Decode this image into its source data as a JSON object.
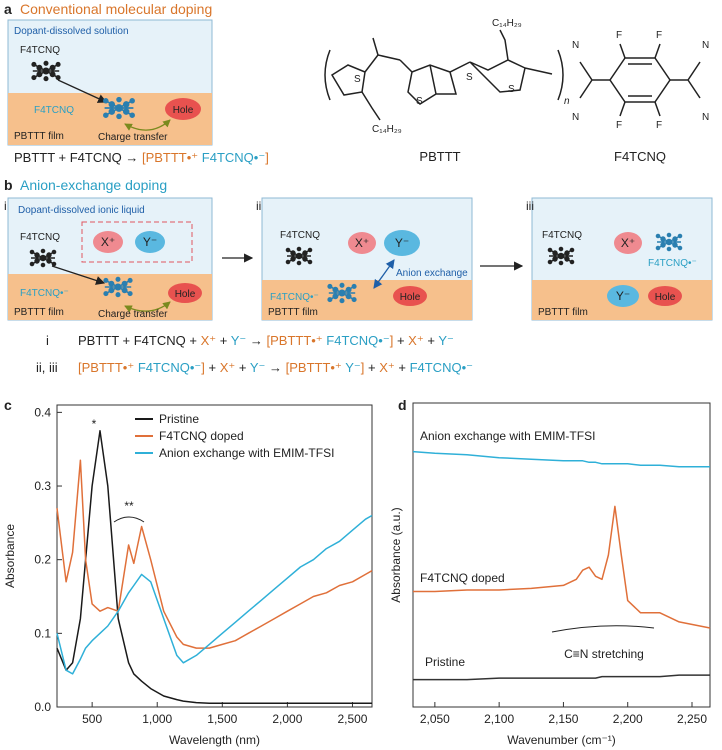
{
  "panel_a": {
    "letter": "a",
    "title": "Conventional molecular doping",
    "box_title": "Dopant-dissolved solution",
    "dopant": "F4TCNQ",
    "film": "PBTTT film",
    "hole": "Hole",
    "transfer": "Charge transfer",
    "equation": [
      {
        "text": "PBTTT + F4TCNQ → ",
        "color": "#222222"
      },
      {
        "text": "[PBTTT•⁺ ",
        "color": "#d9762b"
      },
      {
        "text": "F4TCNQ•⁻",
        "color": "#2a9fc4"
      },
      {
        "text": "]",
        "color": "#d9762b"
      }
    ],
    "structures": {
      "pbttt": "PBTTT",
      "f4tcnq": "F4TCNQ",
      "alkyl": "C₁₄H₂₉",
      "repeat": "n",
      "S": "S",
      "F": "F",
      "N": "N"
    }
  },
  "panel_b": {
    "letter": "b",
    "title": "Anion-exchange doping",
    "box_title": "Dopant-dissolved ionic liquid",
    "steps": [
      "i",
      "ii",
      "iii"
    ],
    "labels": {
      "dopant": "F4TCNQ",
      "cation": "X⁺",
      "anion": "Y⁻",
      "radical_anion": "F4TCNQ•⁻",
      "hole": "Hole",
      "film": "PBTTT film",
      "transfer": "Charge transfer",
      "exchange": "Anion exchange"
    },
    "equations": [
      {
        "label": "i",
        "segments": [
          {
            "text": "PBTTT + F4TCNQ + ",
            "color": "#222222"
          },
          {
            "text": "X⁺",
            "color": "#d9762b"
          },
          {
            "text": " + ",
            "color": "#222222"
          },
          {
            "text": "Y⁻",
            "color": "#2a9fc4"
          },
          {
            "text": " → ",
            "color": "#222222"
          },
          {
            "text": "[PBTTT•⁺ ",
            "color": "#d9762b"
          },
          {
            "text": "F4TCNQ•⁻",
            "color": "#2a9fc4"
          },
          {
            "text": "]",
            "color": "#d9762b"
          },
          {
            "text": " + ",
            "color": "#222222"
          },
          {
            "text": "X⁺",
            "color": "#d9762b"
          },
          {
            "text": " + ",
            "color": "#222222"
          },
          {
            "text": "Y⁻",
            "color": "#2a9fc4"
          }
        ]
      },
      {
        "label": "ii, iii",
        "segments": [
          {
            "text": "[PBTTT•⁺ ",
            "color": "#d9762b"
          },
          {
            "text": "F4TCNQ•⁻",
            "color": "#2a9fc4"
          },
          {
            "text": "]",
            "color": "#d9762b"
          },
          {
            "text": " + ",
            "color": "#222222"
          },
          {
            "text": "X⁺",
            "color": "#d9762b"
          },
          {
            "text": " + ",
            "color": "#222222"
          },
          {
            "text": "Y⁻",
            "color": "#2a9fc4"
          },
          {
            "text": " → ",
            "color": "#222222"
          },
          {
            "text": "[PBTTT•⁺ ",
            "color": "#d9762b"
          },
          {
            "text": "Y⁻",
            "color": "#2a9fc4"
          },
          {
            "text": "]",
            "color": "#d9762b"
          },
          {
            "text": " + ",
            "color": "#222222"
          },
          {
            "text": "X⁺",
            "color": "#d9762b"
          },
          {
            "text": " + ",
            "color": "#222222"
          },
          {
            "text": "F4TCNQ•⁻",
            "color": "#2a9fc4"
          }
        ]
      }
    ]
  },
  "chart_data": [
    {
      "type": "line",
      "letter": "c",
      "xlabel": "Wavelength (nm)",
      "ylabel": "Absorbance",
      "xlim": [
        230,
        2650
      ],
      "ylim": [
        0,
        0.41
      ],
      "xticks": [
        500,
        {
          "value": 1000,
          "label": "1,000"
        },
        {
          "value": 1500,
          "label": "1,500"
        },
        {
          "value": 2000,
          "label": "2,000"
        },
        {
          "value": 2500,
          "label": "2,500"
        }
      ],
      "yticks": [
        {
          "value": 0,
          "label": "0.0"
        },
        0.1,
        0.2,
        0.3,
        0.4
      ],
      "legend": "top-right",
      "annotations": [
        "*",
        "**"
      ],
      "x": [
        230,
        300,
        350,
        410,
        450,
        500,
        560,
        620,
        700,
        780,
        820,
        880,
        950,
        1050,
        1150,
        1200,
        1300,
        1400,
        1500,
        1600,
        1700,
        1800,
        1900,
        2000,
        2100,
        2200,
        2300,
        2400,
        2500,
        2600,
        2650
      ],
      "series": [
        {
          "name": "Pristine",
          "color": "#1a1a1a",
          "values": [
            0.08,
            0.05,
            0.06,
            0.12,
            0.2,
            0.3,
            0.375,
            0.3,
            0.12,
            0.06,
            0.045,
            0.035,
            0.025,
            0.015,
            0.01,
            0.008,
            0.006,
            0.005,
            0.005,
            0.005,
            0.005,
            0.005,
            0.005,
            0.005,
            0.005,
            0.005,
            0.005,
            0.005,
            0.005,
            0.005,
            0.005
          ]
        },
        {
          "name": "F4TCNQ doped",
          "color": "#e0703a",
          "values": [
            0.27,
            0.17,
            0.21,
            0.335,
            0.2,
            0.14,
            0.13,
            0.135,
            0.13,
            0.22,
            0.195,
            0.245,
            0.2,
            0.13,
            0.095,
            0.085,
            0.08,
            0.08,
            0.085,
            0.09,
            0.1,
            0.11,
            0.12,
            0.13,
            0.14,
            0.15,
            0.155,
            0.165,
            0.17,
            0.18,
            0.185
          ]
        },
        {
          "name": "Anion exchange with EMIM-TFSI",
          "color": "#2fb0d8",
          "values": [
            0.1,
            0.05,
            0.045,
            0.065,
            0.08,
            0.09,
            0.1,
            0.11,
            0.13,
            0.155,
            0.165,
            0.18,
            0.17,
            0.12,
            0.07,
            0.06,
            0.07,
            0.085,
            0.1,
            0.115,
            0.13,
            0.145,
            0.16,
            0.175,
            0.19,
            0.2,
            0.215,
            0.225,
            0.24,
            0.255,
            0.26
          ]
        }
      ]
    },
    {
      "type": "line",
      "letter": "d",
      "xlabel": "Wavenumber (cm⁻¹)",
      "ylabel": "Absorbance (a.u.)",
      "xlim": [
        2033,
        2264
      ],
      "ylim": [
        0,
        1
      ],
      "xticks": [
        {
          "value": 2050,
          "label": "2,050"
        },
        {
          "value": 2100,
          "label": "2,100"
        },
        {
          "value": 2150,
          "label": "2,150"
        },
        {
          "value": 2200,
          "label": "2,200"
        },
        {
          "value": 2250,
          "label": "2,250"
        }
      ],
      "annotations": [
        "C≡N stretching"
      ],
      "x": [
        2033,
        2050,
        2075,
        2100,
        2125,
        2150,
        2160,
        2165,
        2170,
        2175,
        2180,
        2185,
        2190,
        2195,
        2200,
        2210,
        2225,
        2240,
        2264
      ],
      "series": [
        {
          "name": "Anion exchange with EMIM-TFSI",
          "color": "#2fb0d8",
          "values": [
            0.84,
            0.835,
            0.83,
            0.82,
            0.815,
            0.81,
            0.81,
            0.81,
            0.805,
            0.805,
            0.8,
            0.8,
            0.8,
            0.8,
            0.8,
            0.795,
            0.795,
            0.79,
            0.79
          ]
        },
        {
          "name": "F4TCNQ doped",
          "color": "#e0703a",
          "values": [
            0.38,
            0.38,
            0.385,
            0.385,
            0.39,
            0.4,
            0.42,
            0.45,
            0.46,
            0.43,
            0.42,
            0.5,
            0.66,
            0.5,
            0.35,
            0.31,
            0.31,
            0.28,
            0.26
          ]
        },
        {
          "name": "Pristine",
          "color": "#333333",
          "values": [
            0.09,
            0.09,
            0.09,
            0.095,
            0.095,
            0.095,
            0.095,
            0.095,
            0.095,
            0.095,
            0.1,
            0.1,
            0.1,
            0.1,
            0.1,
            0.1,
            0.1,
            0.105,
            0.105
          ]
        }
      ]
    }
  ]
}
